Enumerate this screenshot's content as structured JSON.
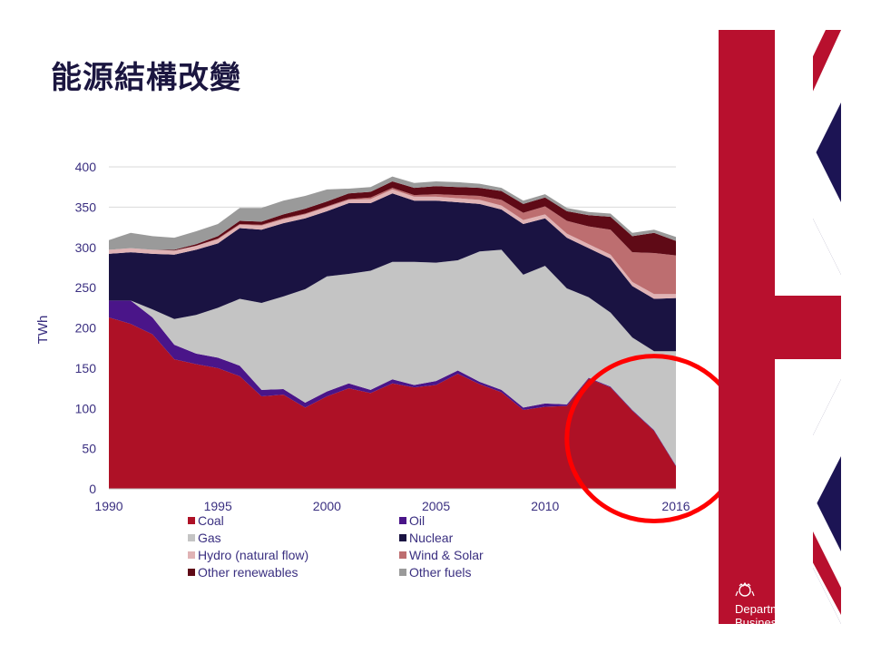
{
  "slide": {
    "title": "能源結構改變"
  },
  "branding": {
    "department_name": "Department for\nBusiness, Energy",
    "flag_icon": "union-jack-flag",
    "crest_icon": "royal-crest-icon"
  },
  "colors": {
    "coal": "#ae1126",
    "oil": "#4a1589",
    "gas": "#c4c4c4",
    "nuclear": "#1a1342",
    "hydro": "#e0b3b5",
    "wind_solar": "#bd6e70",
    "other_renewables": "#5f0a16",
    "other_fuels": "#9a9a9a",
    "highlight_circle": "#ff0000",
    "flag_red": "#b8102e",
    "flag_blue": "#1c1454"
  },
  "chart_data": {
    "type": "area",
    "stacked": true,
    "ylabel": "TWh",
    "xlabel": "",
    "xlim": [
      1990,
      2016
    ],
    "ylim": [
      0,
      400
    ],
    "x_ticks": [
      1990,
      1995,
      2000,
      2005,
      2010,
      2016
    ],
    "y_ticks": [
      0,
      50,
      100,
      150,
      200,
      250,
      300,
      350,
      400
    ],
    "grid": "horizontal",
    "legend": "bottom",
    "x": [
      1990,
      1991,
      1992,
      1993,
      1994,
      1995,
      1996,
      1997,
      1998,
      1999,
      2000,
      2001,
      2002,
      2003,
      2004,
      2005,
      2006,
      2007,
      2008,
      2009,
      2010,
      2011,
      2012,
      2013,
      2014,
      2015,
      2016
    ],
    "series": [
      {
        "name": "Coal",
        "color_key": "coal",
        "values": [
          213,
          205,
          192,
          161,
          155,
          150,
          140,
          115,
          117,
          101,
          115,
          125,
          119,
          131,
          126,
          129,
          143,
          130,
          120,
          98,
          102,
          103,
          137,
          126,
          97,
          72,
          28
        ]
      },
      {
        "name": "Oil",
        "color_key": "oil",
        "values": [
          21,
          29,
          21,
          18,
          13,
          13,
          13,
          8,
          7,
          6,
          6,
          6,
          4,
          5,
          3,
          5,
          4,
          3,
          3,
          3,
          4,
          2,
          1,
          1,
          1,
          1,
          1
        ]
      },
      {
        "name": "Gas",
        "color_key": "gas",
        "values": [
          0,
          0,
          10,
          32,
          48,
          62,
          83,
          108,
          115,
          141,
          143,
          136,
          148,
          146,
          153,
          147,
          137,
          162,
          174,
          165,
          171,
          144,
          100,
          92,
          90,
          98,
          142
        ]
      },
      {
        "name": "Nuclear",
        "color_key": "nuclear",
        "values": [
          58,
          60,
          69,
          80,
          81,
          80,
          88,
          91,
          91,
          88,
          81,
          88,
          84,
          85,
          76,
          77,
          72,
          59,
          50,
          63,
          59,
          63,
          61,
          67,
          64,
          65,
          66
        ]
      },
      {
        "name": "Hydro (natural flow)",
        "color_key": "hydro",
        "values": [
          5,
          5,
          5,
          5,
          5,
          5,
          4,
          5,
          5,
          5,
          5,
          4,
          5,
          5,
          5,
          5,
          5,
          5,
          5,
          5,
          5,
          5,
          5,
          5,
          5,
          6,
          5
        ]
      },
      {
        "name": "Wind & Solar",
        "color_key": "wind_solar",
        "values": [
          0,
          0,
          0,
          0,
          0,
          1,
          1,
          1,
          1,
          1,
          1,
          1,
          2,
          2,
          2,
          3,
          4,
          5,
          7,
          9,
          10,
          16,
          22,
          31,
          37,
          51,
          48
        ]
      },
      {
        "name": "Other renewables",
        "color_key": "other_renewables",
        "values": [
          0,
          0,
          0,
          1,
          2,
          3,
          4,
          4,
          5,
          6,
          6,
          7,
          7,
          8,
          9,
          10,
          10,
          10,
          11,
          11,
          11,
          12,
          14,
          16,
          20,
          25,
          18
        ]
      },
      {
        "name": "Other fuels",
        "color_key": "other_fuels",
        "values": [
          12,
          19,
          17,
          15,
          16,
          15,
          16,
          17,
          17,
          16,
          15,
          6,
          6,
          6,
          6,
          6,
          6,
          5,
          4,
          4,
          4,
          4,
          4,
          4,
          4,
          4,
          5
        ]
      }
    ],
    "annotations": [
      {
        "type": "circle",
        "label": "",
        "color_key": "highlight_circle",
        "x_range": [
          2011,
          2019
        ],
        "y_range": [
          -40,
          165
        ]
      }
    ]
  }
}
